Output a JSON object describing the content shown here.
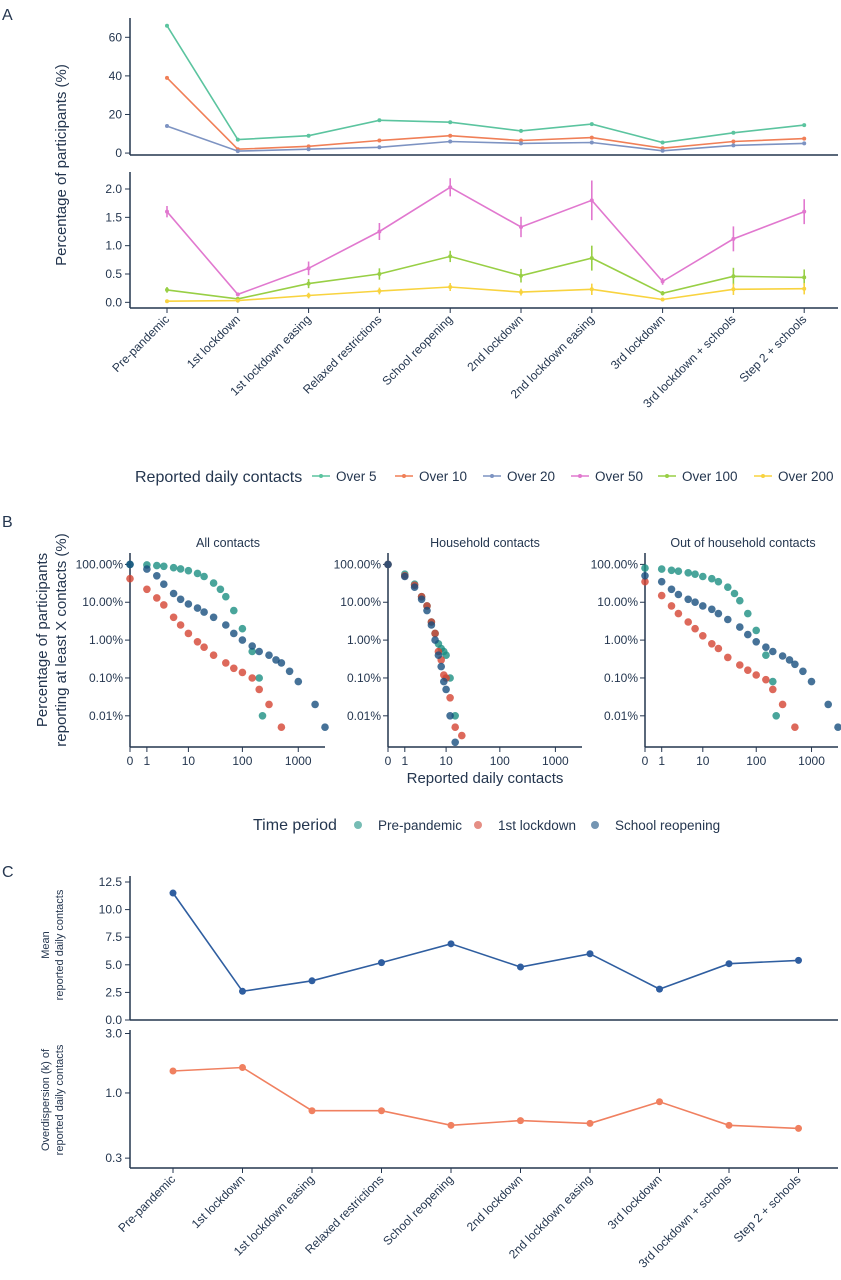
{
  "panel_labels": {
    "a": "A",
    "b": "B",
    "c": "C"
  },
  "palettes": {
    "a": [
      "#5bc49f",
      "#f07f57",
      "#7d93c2",
      "#e178cf",
      "#98cf45",
      "#f8d33f"
    ],
    "b": [
      "#1b8f82",
      "#d44332",
      "#184f7e"
    ],
    "c_mean": "#2f5ea0",
    "c_k": "#f08060"
  },
  "axis_color": "#24364f",
  "panel_a_legend_title": "Reported daily contacts",
  "panel_b_legend_title": "Time period",
  "chart_data": [
    {
      "type": "line",
      "panel": "A",
      "ylabel": "Percentage of participants (%)",
      "categories": [
        "Pre-pandemic",
        "1st lockdown",
        "1st lockdown easing",
        "Relaxed restrictions",
        "School reopening",
        "2nd lockdown",
        "2nd lockdown easing",
        "3rd lockdown",
        "3rd lockdown + schools",
        "Step 2 + schools"
      ],
      "top_ylim": [
        -1,
        70
      ],
      "top_yticks": [
        "0",
        "20",
        "40",
        "60"
      ],
      "bottom_ylim": [
        -0.1,
        2.3
      ],
      "bottom_yticks": [
        "0.0",
        "0.5",
        "1.0",
        "1.5",
        "2.0"
      ],
      "series": [
        {
          "name": "Over 5",
          "panel": "top",
          "values": [
            66,
            7,
            9,
            17,
            16,
            11.5,
            15,
            5.5,
            10.5,
            14.5
          ]
        },
        {
          "name": "Over 10",
          "panel": "top",
          "values": [
            39,
            2,
            3.5,
            6.5,
            9,
            6.5,
            8,
            2.5,
            6,
            7.5
          ]
        },
        {
          "name": "Over 20",
          "panel": "top",
          "values": [
            14,
            1,
            2,
            3,
            6,
            5,
            5.5,
            1.2,
            4,
            5
          ]
        },
        {
          "name": "Over 50",
          "panel": "bottom",
          "values": [
            1.6,
            0.14,
            0.6,
            1.25,
            2.03,
            1.33,
            1.8,
            0.37,
            1.12,
            1.6
          ],
          "err": [
            0.1,
            0.03,
            0.12,
            0.15,
            0.16,
            0.18,
            0.35,
            0.06,
            0.22,
            0.22
          ]
        },
        {
          "name": "Over 100",
          "panel": "bottom",
          "values": [
            0.22,
            0.06,
            0.33,
            0.5,
            0.81,
            0.47,
            0.78,
            0.16,
            0.46,
            0.44
          ],
          "err": [
            0.05,
            0.02,
            0.08,
            0.1,
            0.1,
            0.12,
            0.22,
            0.04,
            0.15,
            0.14
          ]
        },
        {
          "name": "Over 200",
          "panel": "bottom",
          "values": [
            0.02,
            0.03,
            0.12,
            0.2,
            0.27,
            0.18,
            0.23,
            0.05,
            0.23,
            0.24
          ],
          "err": [
            0.02,
            0.01,
            0.05,
            0.06,
            0.07,
            0.06,
            0.1,
            0.02,
            0.1,
            0.1
          ]
        }
      ]
    },
    {
      "type": "scatter",
      "panel": "B",
      "ylabel": [
        "Percentage of participants",
        "reporting at least X contacts (%)"
      ],
      "xlabel": "Reported daily contacts",
      "xscale": "log1p",
      "yscale": "log",
      "xticks": [
        "0",
        "1",
        "10",
        "100",
        "1000"
      ],
      "yticks": [
        "100.00%",
        "10.00%",
        "1.00%",
        "0.10%",
        "0.01%"
      ],
      "facets": [
        {
          "title": "All contacts",
          "series": [
            {
              "name": "Pre-pandemic",
              "x": [
                0,
                1,
                2,
                3,
                5,
                7,
                10,
                15,
                20,
                30,
                40,
                50,
                70,
                100,
                150,
                200,
                230
              ],
              "y": [
                100,
                97,
                93,
                89,
                82,
                76,
                68,
                58,
                48,
                32,
                22,
                14,
                6,
                2,
                0.5,
                0.1,
                0.01
              ]
            },
            {
              "name": "1st lockdown",
              "x": [
                0,
                1,
                2,
                3,
                5,
                7,
                10,
                15,
                20,
                30,
                50,
                70,
                100,
                150,
                200,
                300,
                500
              ],
              "y": [
                42,
                22,
                13,
                8.5,
                4,
                2.5,
                1.5,
                0.9,
                0.65,
                0.4,
                0.25,
                0.18,
                0.14,
                0.1,
                0.05,
                0.02,
                0.005
              ]
            },
            {
              "name": "School reopening",
              "x": [
                0,
                1,
                2,
                3,
                5,
                7,
                10,
                15,
                20,
                30,
                50,
                70,
                100,
                150,
                200,
                300,
                400,
                500,
                700,
                1000,
                2000,
                3000
              ],
              "y": [
                100,
                75,
                50,
                30,
                17,
                12,
                9,
                7,
                5.5,
                4,
                2.5,
                1.5,
                1,
                0.7,
                0.5,
                0.4,
                0.3,
                0.25,
                0.15,
                0.08,
                0.02,
                0.005
              ]
            }
          ]
        },
        {
          "title": "Household contacts",
          "series": [
            {
              "name": "Pre-pandemic",
              "x": [
                0,
                1,
                2,
                3,
                4,
                5,
                6,
                7,
                8,
                9,
                10,
                12,
                15
              ],
              "y": [
                100,
                55,
                30,
                14,
                8,
                3,
                1.5,
                0.8,
                0.6,
                0.5,
                0.4,
                0.1,
                0.01
              ]
            },
            {
              "name": "1st lockdown",
              "x": [
                0,
                1,
                2,
                3,
                4,
                5,
                6,
                7,
                8,
                9,
                10,
                12,
                15,
                20
              ],
              "y": [
                100,
                50,
                28,
                14,
                8,
                3,
                1.5,
                0.5,
                0.3,
                0.12,
                0.1,
                0.03,
                0.005,
                0.003
              ]
            },
            {
              "name": "School reopening",
              "x": [
                0,
                1,
                2,
                3,
                4,
                5,
                6,
                7,
                8,
                9,
                10,
                12,
                15
              ],
              "y": [
                100,
                48,
                25,
                12,
                6,
                2.5,
                1,
                0.4,
                0.2,
                0.08,
                0.05,
                0.01,
                0.002
              ]
            }
          ]
        },
        {
          "title": "Out of household contacts",
          "series": [
            {
              "name": "Pre-pandemic",
              "x": [
                0,
                1,
                2,
                3,
                5,
                7,
                10,
                15,
                20,
                30,
                40,
                50,
                70,
                100,
                150,
                200,
                230
              ],
              "y": [
                80,
                75,
                70,
                66,
                60,
                55,
                48,
                42,
                35,
                25,
                17,
                11,
                5,
                1.8,
                0.4,
                0.08,
                0.01
              ]
            },
            {
              "name": "1st lockdown",
              "x": [
                0,
                1,
                2,
                3,
                5,
                7,
                10,
                15,
                20,
                30,
                50,
                70,
                100,
                150,
                200,
                300,
                500
              ],
              "y": [
                35,
                15,
                8,
                5,
                3,
                2,
                1.3,
                0.8,
                0.6,
                0.35,
                0.22,
                0.16,
                0.12,
                0.09,
                0.05,
                0.02,
                0.005
              ]
            },
            {
              "name": "School reopening",
              "x": [
                0,
                1,
                2,
                3,
                5,
                7,
                10,
                15,
                20,
                30,
                50,
                70,
                100,
                150,
                200,
                300,
                400,
                500,
                700,
                1000,
                2000,
                3000
              ],
              "y": [
                50,
                35,
                22,
                16,
                12,
                10,
                8,
                6.5,
                5,
                3.5,
                2.2,
                1.4,
                0.9,
                0.65,
                0.5,
                0.38,
                0.3,
                0.23,
                0.15,
                0.08,
                0.02,
                0.005
              ]
            }
          ]
        }
      ]
    },
    {
      "type": "line",
      "panel": "C",
      "categories": [
        "Pre-pandemic",
        "1st lockdown",
        "1st lockdown easing",
        "Relaxed restrictions",
        "School reopening",
        "2nd lockdown",
        "2nd lockdown easing",
        "3rd lockdown",
        "3rd lockdown + schools",
        "Step 2 + schools"
      ],
      "mean": {
        "ylabel": [
          "Mean",
          "reported daily contacts"
        ],
        "ylim": [
          0,
          12.5
        ],
        "yticks": [
          "0.0",
          "2.5",
          "5.0",
          "7.5",
          "10.0",
          "12.5"
        ],
        "values": [
          11.5,
          2.6,
          3.55,
          5.2,
          6.9,
          4.8,
          6.0,
          2.8,
          5.1,
          5.4
        ]
      },
      "overdispersion": {
        "ylabel": [
          "Overdispersion (k) of",
          "reported daily contacts"
        ],
        "yscale": "log",
        "ylim": [
          0.25,
          3.2
        ],
        "yticks": [
          "0.3",
          "1.0",
          "3.0"
        ],
        "values": [
          1.5,
          1.6,
          0.72,
          0.72,
          0.55,
          0.6,
          0.57,
          0.85,
          0.55,
          0.52
        ]
      }
    }
  ]
}
